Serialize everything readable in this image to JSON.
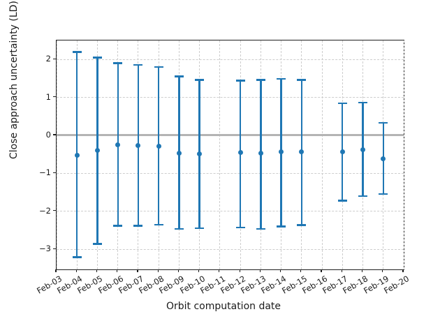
{
  "colors": {
    "accent_blue": "#1f77b4",
    "zero_line": "#b4b4b4",
    "grid": "#cdcdcd",
    "spine": "#1f1f1f",
    "text": "#1a1a1a",
    "background": "#ffffff"
  },
  "chart_data": {
    "type": "scatter",
    "subtype": "errorbar",
    "title": "",
    "xlabel": "Orbit computation date",
    "ylabel": "Close approach uncertainty (LD)",
    "categories": [
      "Feb-03",
      "Feb-04",
      "Feb-05",
      "Feb-06",
      "Feb-07",
      "Feb-08",
      "Feb-09",
      "Feb-10",
      "Feb-11",
      "Feb-12",
      "Feb-13",
      "Feb-14",
      "Feb-15",
      "Feb-16",
      "Feb-17",
      "Feb-18",
      "Feb-19",
      "Feb-20"
    ],
    "yticks": [
      2,
      1,
      0,
      -1,
      -2,
      -3
    ],
    "ytick_labels": [
      "2",
      "1",
      "0",
      "−1",
      "−2",
      "−3"
    ],
    "ylim": [
      -3.53,
      2.5
    ],
    "grid": true,
    "legend": false,
    "zero_line_y": 0,
    "points": [
      {
        "date": "Feb-04",
        "center": -0.52,
        "upper": 2.2,
        "lower": -3.21
      },
      {
        "date": "Feb-05",
        "center": -0.4,
        "upper": 2.05,
        "lower": -2.86
      },
      {
        "date": "Feb-06",
        "center": -0.25,
        "upper": 1.9,
        "lower": -2.38
      },
      {
        "date": "Feb-07",
        "center": -0.27,
        "upper": 1.86,
        "lower": -2.38
      },
      {
        "date": "Feb-08",
        "center": -0.29,
        "upper": 1.8,
        "lower": -2.35
      },
      {
        "date": "Feb-09",
        "center": -0.46,
        "upper": 1.55,
        "lower": -2.46
      },
      {
        "date": "Feb-10",
        "center": -0.49,
        "upper": 1.46,
        "lower": -2.44
      },
      {
        "date": "Feb-12",
        "center": -0.45,
        "upper": 1.44,
        "lower": -2.43
      },
      {
        "date": "Feb-13",
        "center": -0.46,
        "upper": 1.46,
        "lower": -2.46
      },
      {
        "date": "Feb-14",
        "center": -0.43,
        "upper": 1.49,
        "lower": -2.4
      },
      {
        "date": "Feb-15",
        "center": -0.44,
        "upper": 1.46,
        "lower": -2.36
      },
      {
        "date": "Feb-17",
        "center": -0.43,
        "upper": 0.84,
        "lower": -1.72
      },
      {
        "date": "Feb-18",
        "center": -0.37,
        "upper": 0.86,
        "lower": -1.6
      },
      {
        "date": "Feb-19",
        "center": -0.62,
        "upper": 0.33,
        "lower": -1.54
      }
    ]
  }
}
